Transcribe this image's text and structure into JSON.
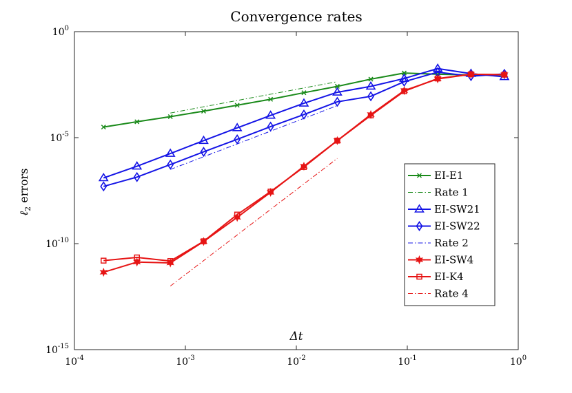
{
  "chart_data": {
    "type": "line",
    "title": "Convergence rates",
    "xlabel": "Δt",
    "ylabel_main": "ℓ",
    "ylabel_sub": "2",
    "ylabel_rest": " errors",
    "xscale": "log",
    "yscale": "log",
    "xlim": [
      0.0001,
      1
    ],
    "ylim": [
      1e-15,
      1
    ],
    "grid": false,
    "legend_position": "lower-right",
    "xticks": [
      {
        "value": 0.0001,
        "base": "10",
        "exp": "-4"
      },
      {
        "value": 0.001,
        "base": "10",
        "exp": "-3"
      },
      {
        "value": 0.01,
        "base": "10",
        "exp": "-2"
      },
      {
        "value": 0.1,
        "base": "10",
        "exp": "-1"
      },
      {
        "value": 1,
        "base": "10",
        "exp": "0"
      }
    ],
    "yticks": [
      {
        "value": 1e-15,
        "base": "10",
        "exp": "-15"
      },
      {
        "value": 1e-10,
        "base": "10",
        "exp": "-10"
      },
      {
        "value": 1e-05,
        "base": "10",
        "exp": "-5"
      },
      {
        "value": 1,
        "base": "10",
        "exp": "0"
      }
    ],
    "series": [
      {
        "name": "EI-E1",
        "color": "#1a8a1a",
        "line": "solid",
        "marker": "x",
        "x": [
          0.000183,
          0.000366,
          0.000732,
          0.00146,
          0.00293,
          0.00586,
          0.0117,
          0.0234,
          0.0469,
          0.0938,
          0.188,
          0.375,
          0.75
        ],
        "y": [
          3.16e-05,
          5.62e-05,
          9.77e-05,
          0.000178,
          0.000339,
          0.000646,
          0.00132,
          0.00263,
          0.00575,
          0.0112,
          0.00977,
          0.00912,
          0.00912
        ]
      },
      {
        "name": "Rate 1",
        "color": "#1a8a1a",
        "line": "dashdot",
        "marker": "none",
        "x": [
          0.000732,
          0.0234
        ],
        "y": [
          0.000145,
          0.00437
        ]
      },
      {
        "name": "EI-SW21",
        "color": "#1414e6",
        "line": "solid",
        "marker": "triangle",
        "x": [
          0.000183,
          0.000366,
          0.000732,
          0.00146,
          0.00293,
          0.00586,
          0.0117,
          0.0234,
          0.0469,
          0.0938,
          0.188,
          0.375,
          0.75
        ],
        "y": [
          1.26e-07,
          4.47e-07,
          1.78e-06,
          7.24e-06,
          2.88e-05,
          0.000112,
          0.000417,
          0.00138,
          0.00263,
          0.00617,
          0.0182,
          0.0105,
          0.00741
        ]
      },
      {
        "name": "EI-SW22",
        "color": "#1414e6",
        "line": "solid",
        "marker": "diamond",
        "x": [
          0.000183,
          0.000366,
          0.000732,
          0.00146,
          0.00293,
          0.00586,
          0.0117,
          0.0234,
          0.0469,
          0.0938,
          0.188,
          0.375,
          0.75
        ],
        "y": [
          5.01e-08,
          1.38e-07,
          5.37e-07,
          2.14e-06,
          8.32e-06,
          3.31e-05,
          0.000123,
          0.00049,
          0.000891,
          0.00437,
          0.0123,
          0.00794,
          0.0102
        ]
      },
      {
        "name": "Rate 2",
        "color": "#1414e6",
        "line": "dashdot",
        "marker": "none",
        "x": [
          0.000732,
          0.0234
        ],
        "y": [
          3.16e-07,
          0.000324
        ]
      },
      {
        "name": "EI-SW4",
        "color": "#e61414",
        "line": "solid",
        "marker": "star",
        "x": [
          0.000183,
          0.000366,
          0.000732,
          0.00146,
          0.00293,
          0.00586,
          0.0117,
          0.0234,
          0.0469,
          0.0938,
          0.188,
          0.375,
          0.75
        ],
        "y": [
          4.47e-12,
          1.35e-11,
          1.23e-11,
          1.26e-10,
          1.74e-09,
          2.63e-08,
          4.47e-07,
          7.24e-06,
          0.000123,
          0.00166,
          0.00589,
          0.00977,
          0.00933
        ]
      },
      {
        "name": "EI-K4",
        "color": "#e61414",
        "line": "solid",
        "marker": "square",
        "x": [
          0.000183,
          0.000366,
          0.000732,
          0.00146,
          0.00293,
          0.00586,
          0.0117,
          0.0234,
          0.0469,
          0.0938,
          0.188,
          0.375,
          0.75
        ],
        "y": [
          1.58e-11,
          2.24e-11,
          1.51e-11,
          1.29e-10,
          2.35e-09,
          2.86e-08,
          4.1e-07,
          7.24e-06,
          0.000112,
          0.00155,
          0.00617,
          0.00977,
          0.00933
        ]
      },
      {
        "name": "Rate 4",
        "color": "#e61414",
        "line": "dashdot",
        "marker": "none",
        "x": [
          0.000732,
          0.0234
        ],
        "y": [
          1e-12,
          1.05e-06
        ]
      }
    ]
  }
}
